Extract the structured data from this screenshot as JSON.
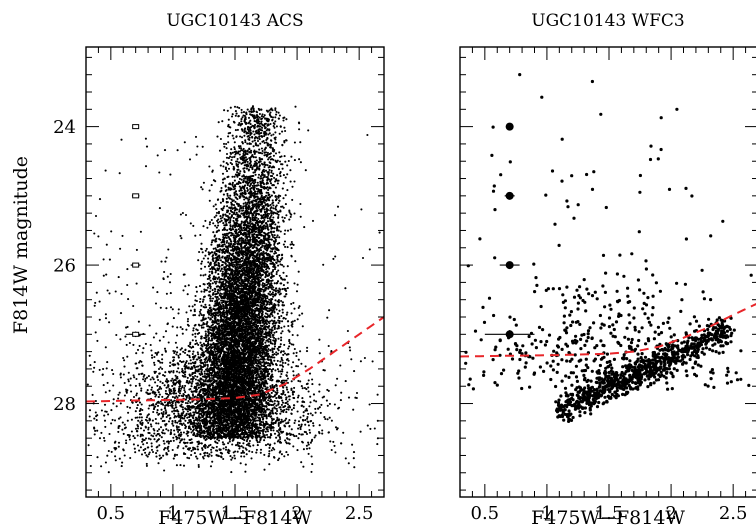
{
  "figure": {
    "ylabel": "F814W magnitude"
  },
  "chart_data": [
    {
      "type": "scatter",
      "title": "UGC10143 ACS",
      "xlabel": "F475W−F814W",
      "ylabel": "F814W magnitude",
      "xlim": [
        0.3,
        2.7
      ],
      "ylim": [
        29.35,
        22.85
      ],
      "y_inverted": true,
      "x_ticks": [
        0.5,
        1,
        1.5,
        2,
        2.5
      ],
      "x_tick_labels": [
        "0.5",
        "1",
        "1.5",
        "2",
        "2.5"
      ],
      "y_ticks": [
        24,
        26,
        28
      ],
      "y_tick_labels": [
        "24",
        "26",
        "28"
      ],
      "grid": false,
      "legend": "none",
      "colors": {
        "points": "#000000",
        "completeness_limit": "#e8262a"
      },
      "completeness_limit": {
        "x": [
          0.3,
          0.6,
          0.9,
          1.2,
          1.5,
          1.7,
          1.9,
          2.1,
          2.3,
          2.5,
          2.7
        ],
        "y": [
          27.97,
          27.96,
          27.95,
          27.94,
          27.92,
          27.87,
          27.72,
          27.5,
          27.25,
          27.0,
          26.75
        ]
      },
      "error_bars": [
        {
          "x": 0.7,
          "y": 24,
          "xerr": 0.02,
          "yerr": 0.03
        },
        {
          "x": 0.7,
          "y": 25,
          "xerr": 0.03,
          "yerr": 0.03
        },
        {
          "x": 0.7,
          "y": 26,
          "xerr": 0.04,
          "yerr": 0.03
        },
        {
          "x": 0.7,
          "y": 27,
          "xerr": 0.08,
          "yerr": 0.04
        }
      ],
      "point_cloud": {
        "total_points": 12000,
        "components": [
          {
            "weight": 0.78,
            "x_center": 1.52,
            "x_spread": 0.16,
            "y_range": [
              23.7,
              28.5
            ],
            "y_peak": 27.3,
            "color_slope": -0.05
          },
          {
            "weight": 0.16,
            "x_center": 1.35,
            "x_spread": 0.45,
            "y_range": [
              27.2,
              28.8
            ],
            "y_peak": 28.1,
            "color_slope": 0.0
          },
          {
            "weight": 0.06,
            "x_center": 1.2,
            "x_spread": 0.7,
            "y_range": [
              24.0,
              29.0
            ],
            "y_peak": 28.0,
            "color_slope": 0.0
          }
        ]
      }
    },
    {
      "type": "scatter",
      "title": "UGC10143 WFC3",
      "xlabel": "F475W−F814W",
      "ylabel": "",
      "xlim": [
        0.3,
        2.7
      ],
      "ylim": [
        29.35,
        22.85
      ],
      "y_inverted": true,
      "x_ticks": [
        0.5,
        1,
        1.5,
        2,
        2.5
      ],
      "x_tick_labels": [
        "0.5",
        "1",
        "1.5",
        "2",
        "2.5"
      ],
      "y_ticks": [
        24,
        26,
        28
      ],
      "y_tick_labels": [],
      "grid": false,
      "legend": "none",
      "colors": {
        "points": "#000000",
        "completeness_limit": "#e8262a"
      },
      "completeness_limit": {
        "x": [
          0.3,
          0.7,
          1.1,
          1.5,
          1.7,
          1.9,
          2.1,
          2.3,
          2.5,
          2.7
        ],
        "y": [
          27.32,
          27.31,
          27.3,
          27.28,
          27.25,
          27.18,
          27.05,
          26.9,
          26.72,
          26.55
        ]
      },
      "error_bars": [
        {
          "x": 0.7,
          "y": 24,
          "xerr": 0.02,
          "yerr": 0.04
        },
        {
          "x": 0.7,
          "y": 25,
          "xerr": 0.04,
          "yerr": 0.05
        },
        {
          "x": 0.7,
          "y": 26,
          "xerr": 0.08,
          "yerr": 0.05
        },
        {
          "x": 0.7,
          "y": 27,
          "xerr": 0.2,
          "yerr": 0.06
        }
      ],
      "point_cloud": {
        "total_points": 1250,
        "components": [
          {
            "weight": 0.62,
            "kind": "sequence",
            "x_range": [
              1.1,
              2.45
            ],
            "y_at_x_start": 28.1,
            "y_at_x_end": 26.95,
            "thickness": 0.22
          },
          {
            "weight": 0.33,
            "kind": "band",
            "x_center": 1.5,
            "x_spread": 0.5,
            "y_range": [
              26.1,
              27.8
            ],
            "y_peak": 27.3
          },
          {
            "weight": 0.05,
            "kind": "band",
            "x_center": 1.5,
            "x_spread": 0.7,
            "y_range": [
              23.2,
              26.5
            ],
            "y_peak": 25.5
          }
        ]
      }
    }
  ]
}
